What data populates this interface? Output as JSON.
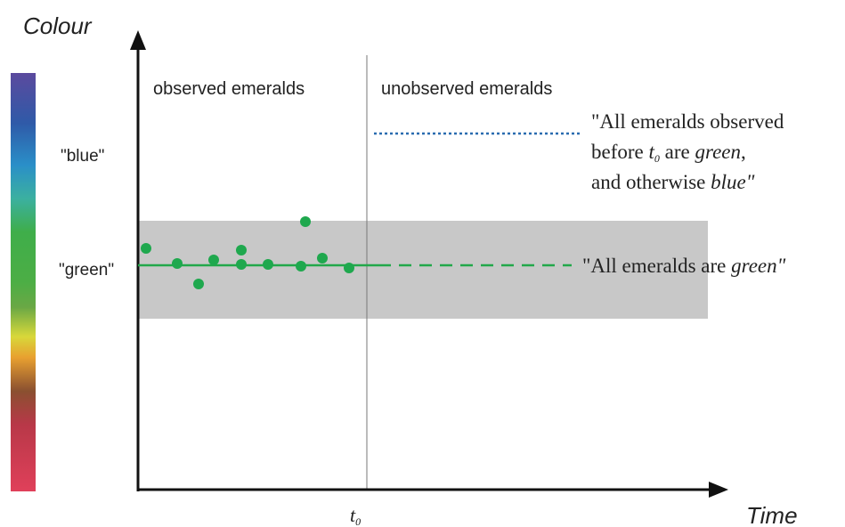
{
  "axes": {
    "y_label": "Colour",
    "x_label": "Time",
    "x_marker": {
      "base": "t",
      "subscript": "0"
    }
  },
  "scale_labels": {
    "blue": "\"blue\"",
    "green": "\"green\""
  },
  "regions": {
    "observed": "observed emeralds",
    "unobserved": "unobserved emeralds"
  },
  "hypotheses": {
    "grue": {
      "line1": "\"All emeralds observed",
      "line2": [
        "before ",
        "t",
        "0",
        " are ",
        "green",
        ","
      ],
      "line3": [
        "and otherwise ",
        "blue",
        "\""
      ]
    },
    "green": [
      "\"All emeralds are ",
      "green",
      "\""
    ]
  }
}
